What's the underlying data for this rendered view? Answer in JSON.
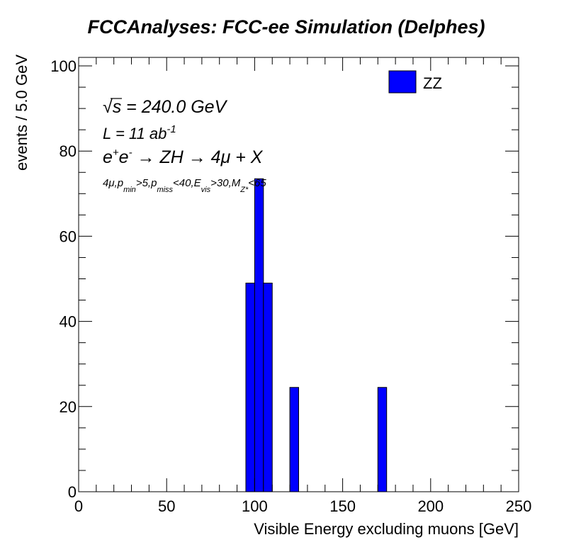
{
  "chart_data": {
    "type": "bar",
    "title": "FCCAnalyses: FCC-ee Simulation (Delphes)",
    "xlabel": "Visible Energy excluding muons [GeV]",
    "ylabel": "events / 5.0 GeV",
    "xlim": [
      0,
      250
    ],
    "ylim": [
      0,
      102
    ],
    "xticks": [
      "0",
      "50",
      "100",
      "150",
      "200",
      "250"
    ],
    "yticks": [
      "0",
      "20",
      "40",
      "60",
      "80",
      "100"
    ],
    "bin_width": 5,
    "series": [
      {
        "name": "ZZ",
        "color": "#0000ff",
        "bins": [
          {
            "low": 95,
            "high": 100,
            "value": 49
          },
          {
            "low": 100,
            "high": 105,
            "value": 73.5
          },
          {
            "low": 105,
            "high": 110,
            "value": 49
          },
          {
            "low": 120,
            "high": 125,
            "value": 24.5
          },
          {
            "low": 170,
            "high": 175,
            "value": 24.5
          }
        ]
      }
    ],
    "legend": {
      "position": "top-right",
      "entries": [
        "ZZ"
      ]
    },
    "annotations": {
      "sqrt_s_sym": "√",
      "sqrt_s_var": "s",
      "energy": " = 240.0 GeV",
      "lumi_main": "L = 11 ab",
      "lumi_exp": "-1",
      "e1": "e",
      "e1_sup": "+",
      "e2": "e",
      "e2_sup": "-",
      "process": " → ZH → 4μ + X",
      "sel_1": "4μ,p",
      "sel_1_sub": "min",
      "sel_2": ">5,p",
      "sel_2_sub": "miss",
      "sel_3": "<40,E",
      "sel_3_sub": "vis",
      "sel_4": ">30,M",
      "sel_4_sub": "Z*",
      "sel_5": "<65"
    },
    "grid": false
  }
}
